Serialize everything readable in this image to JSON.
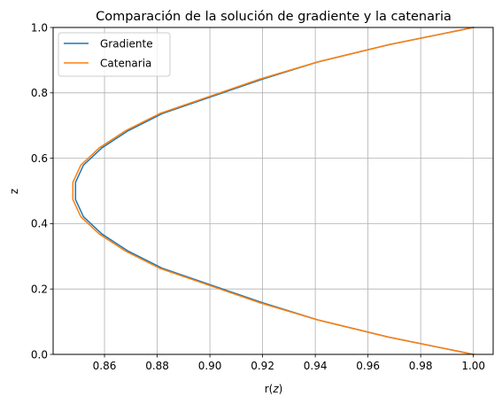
{
  "chart_data": {
    "type": "line",
    "title": "Comparación de la solución de gradiente y la catenaria",
    "xlabel_prefix": "r(",
    "xlabel_var": "z",
    "xlabel_suffix": ")",
    "ylabel": "z",
    "xlim": [
      0.8405,
      1.0075
    ],
    "ylim": [
      0.0,
      1.0
    ],
    "xticks": [
      0.86,
      0.88,
      0.9,
      0.92,
      0.94,
      0.96,
      0.98,
      1.0
    ],
    "xtick_labels": [
      "0.86",
      "0.88",
      "0.90",
      "0.92",
      "0.94",
      "0.96",
      "0.98",
      "1.00"
    ],
    "yticks": [
      0.0,
      0.2,
      0.4,
      0.6,
      0.8,
      1.0
    ],
    "ytick_labels": [
      "0.0",
      "0.2",
      "0.4",
      "0.6",
      "0.8",
      "1.0"
    ],
    "grid": true,
    "legend_position": "top-left",
    "series": [
      {
        "name": "Gradiente",
        "color": "#1f77b4",
        "x": [
          1.0,
          0.968,
          0.941,
          0.92,
          0.901,
          0.882,
          0.869,
          0.859,
          0.852,
          0.849,
          0.849,
          0.852,
          0.859,
          0.869,
          0.882,
          0.901,
          0.92,
          0.941,
          0.968,
          1.0
        ],
        "y": [
          0.0,
          0.0526,
          0.1053,
          0.1579,
          0.2105,
          0.2632,
          0.3158,
          0.3684,
          0.4211,
          0.4737,
          0.5263,
          0.5789,
          0.6316,
          0.6842,
          0.7368,
          0.7895,
          0.8421,
          0.8947,
          0.9474,
          1.0
        ]
      },
      {
        "name": "Catenaria",
        "color": "#ff7f0e",
        "x": [
          1.0,
          0.968,
          0.941,
          0.919,
          0.9,
          0.881,
          0.868,
          0.858,
          0.851,
          0.848,
          0.848,
          0.851,
          0.858,
          0.868,
          0.881,
          0.9,
          0.919,
          0.941,
          0.968,
          1.0
        ],
        "y": [
          0.0,
          0.0526,
          0.1053,
          0.1579,
          0.2105,
          0.2632,
          0.3158,
          0.3684,
          0.4211,
          0.4737,
          0.5263,
          0.5789,
          0.6316,
          0.6842,
          0.7368,
          0.7895,
          0.8421,
          0.8947,
          0.9474,
          1.0
        ]
      }
    ]
  }
}
